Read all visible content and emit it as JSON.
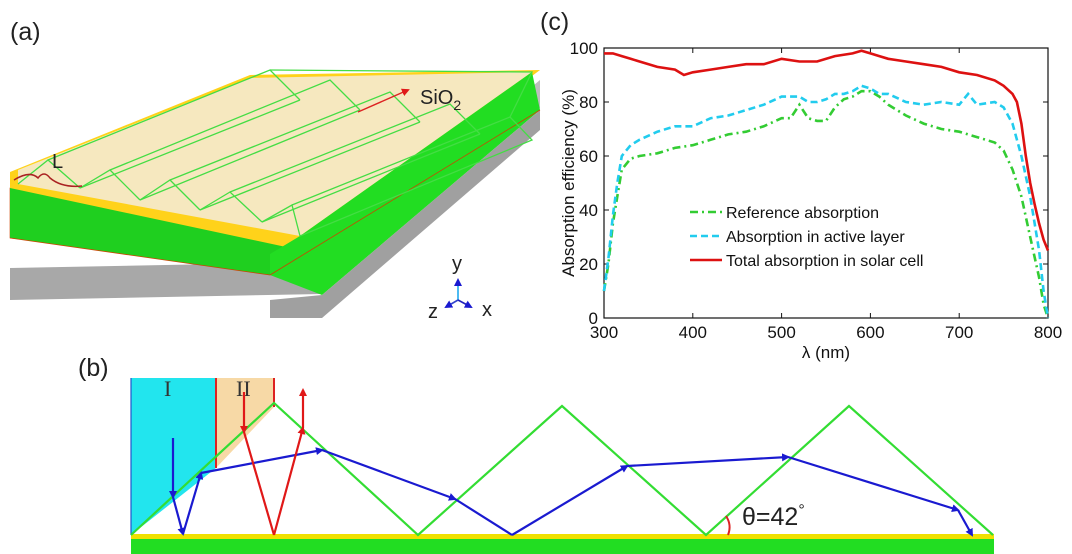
{
  "panels": {
    "a": {
      "label": "(a)",
      "L_label": "L",
      "sio2_label_main": "SiO",
      "sio2_label_sub": "2",
      "axis_y": "y",
      "axis_z": "z",
      "axis_x": "x",
      "colors": {
        "active_layer": "#22dd22",
        "substrate": "#a9a9a9",
        "gold_layer": "#ffd21a",
        "coating": "#f6e6b6",
        "prism_edge": "#44dd44",
        "arrow": "#dd2222"
      }
    },
    "b": {
      "label": "(b)",
      "region_I": "I",
      "region_II": "II",
      "theta_label": "θ=42",
      "degree_symbol": "°",
      "colors": {
        "region_I": "#22e5ee",
        "region_II": "#f7d9a6",
        "prism": "#33dd33",
        "ray_blue": "#1a1ad0",
        "ray_red": "#e01818",
        "layer_green": "#22dd22",
        "layer_yellow": "#f0e000"
      }
    },
    "c": {
      "label": "(c)"
    }
  },
  "chart_data": {
    "type": "line",
    "title": "",
    "xlabel": "λ (nm)",
    "ylabel": "Absorption efficiency (%)",
    "xlim": [
      300,
      800
    ],
    "ylim": [
      0,
      100
    ],
    "xticks": [
      300,
      400,
      500,
      600,
      700,
      800
    ],
    "yticks": [
      0,
      20,
      40,
      60,
      80,
      100
    ],
    "grid": false,
    "legend_position": "center-left",
    "series": [
      {
        "name": "Reference absorption",
        "color": "#33cc33",
        "style": "dashdot",
        "x": [
          300,
          305,
          310,
          315,
          320,
          330,
          340,
          360,
          380,
          400,
          420,
          440,
          460,
          480,
          500,
          510,
          520,
          530,
          540,
          550,
          560,
          570,
          580,
          590,
          600,
          610,
          620,
          640,
          660,
          680,
          700,
          720,
          740,
          750,
          760,
          770,
          780,
          790,
          795,
          800
        ],
        "y": [
          10,
          20,
          35,
          45,
          55,
          59,
          60,
          61,
          63,
          64,
          66,
          68,
          69,
          71,
          74,
          74,
          79,
          74,
          73,
          73,
          78,
          81,
          82,
          84,
          84,
          82,
          79,
          75,
          72,
          70,
          69,
          67,
          65,
          62,
          55,
          45,
          30,
          15,
          5,
          0
        ]
      },
      {
        "name": "Absorption in active layer",
        "color": "#22ccee",
        "style": "dashed",
        "x": [
          300,
          305,
          310,
          315,
          320,
          330,
          340,
          360,
          380,
          400,
          420,
          440,
          460,
          480,
          500,
          510,
          520,
          530,
          540,
          550,
          560,
          570,
          580,
          590,
          600,
          610,
          620,
          640,
          660,
          680,
          700,
          710,
          720,
          740,
          750,
          760,
          770,
          780,
          790,
          795,
          800
        ],
        "y": [
          10,
          22,
          38,
          50,
          60,
          64,
          66,
          69,
          71,
          71,
          74,
          75,
          77,
          79,
          82,
          82,
          82,
          80,
          80,
          81,
          83,
          83,
          84,
          86,
          85,
          83,
          83,
          80,
          79,
          80,
          79,
          83,
          79,
          80,
          78,
          72,
          60,
          45,
          25,
          10,
          0
        ]
      },
      {
        "name": "Total absorption in solar cell",
        "color": "#dd1111",
        "style": "solid",
        "x": [
          300,
          310,
          320,
          330,
          340,
          360,
          380,
          390,
          400,
          420,
          440,
          460,
          480,
          500,
          520,
          540,
          560,
          580,
          590,
          600,
          610,
          620,
          640,
          660,
          680,
          700,
          720,
          740,
          750,
          760,
          765,
          770,
          775,
          780,
          785,
          790,
          795,
          800
        ],
        "y": [
          98,
          98,
          97,
          96,
          95,
          93,
          92,
          90,
          91,
          92,
          93,
          94,
          94,
          96,
          95,
          95,
          97,
          98,
          99,
          98,
          97,
          96,
          95,
          94,
          93,
          91,
          90,
          88,
          86,
          83,
          80,
          72,
          60,
          50,
          42,
          35,
          29,
          25
        ]
      }
    ]
  }
}
